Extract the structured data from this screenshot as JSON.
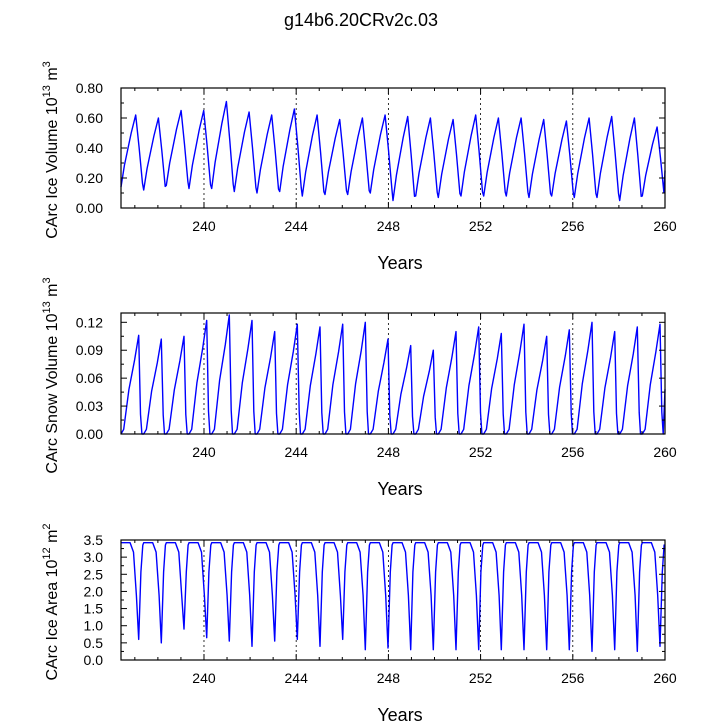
{
  "figure": {
    "title": "g14b6.20CRv2c.03"
  },
  "colors": {
    "line": "#0000ff",
    "frame": "#000000",
    "refline": "#000000"
  },
  "chart_data": [
    {
      "type": "line",
      "xlabel": "Years",
      "ylabel": "CArc Ice Volume 10",
      "ylabel_exp": "13",
      "ylabel_unit": " m",
      "ylabel_unit_exp": "3",
      "xlim": [
        236.4,
        260
      ],
      "ylim": [
        0,
        0.8
      ],
      "xticks": [
        240,
        244,
        248,
        252,
        256,
        260
      ],
      "xtick_labels": [
        "240",
        "244",
        "248",
        "252",
        "256",
        "260"
      ],
      "yticks": [
        0,
        0.2,
        0.4,
        0.6,
        0.8
      ],
      "ytick_labels": [
        "0.00",
        "0.20",
        "0.40",
        "0.60",
        "0.80"
      ],
      "grid": "dashed vertical lines at 240, 244, 248, 252, 256",
      "series": [
        {
          "peaks": [
            0.62,
            0.6,
            0.65,
            0.65,
            0.71,
            0.64,
            0.62,
            0.66,
            0.62,
            0.59,
            0.6,
            0.62,
            0.61,
            0.6,
            0.59,
            0.62,
            0.6,
            0.6,
            0.59,
            0.58,
            0.6,
            0.61,
            0.6,
            0.54
          ],
          "troughs": [
            0.14,
            0.12,
            0.15,
            0.13,
            0.13,
            0.11,
            0.1,
            0.11,
            0.08,
            0.09,
            0.09,
            0.1,
            0.05,
            0.08,
            0.07,
            0.08,
            0.08,
            0.08,
            0.07,
            0.08,
            0.07,
            0.07,
            0.05,
            0.08
          ]
        }
      ]
    },
    {
      "type": "line",
      "xlabel": "Years",
      "ylabel": "CArc Snow Volume 10",
      "ylabel_exp": "13",
      "ylabel_unit": " m",
      "ylabel_unit_exp": "3",
      "xlim": [
        236.4,
        260
      ],
      "ylim": [
        0,
        0.13
      ],
      "xticks": [
        240,
        244,
        248,
        252,
        256,
        260
      ],
      "xtick_labels": [
        "240",
        "244",
        "248",
        "252",
        "256",
        "260"
      ],
      "yticks": [
        0,
        0.03,
        0.06,
        0.09,
        0.12
      ],
      "ytick_labels": [
        "0.00",
        "0.03",
        "0.06",
        "0.09",
        "0.12"
      ],
      "grid": "dashed vertical lines at 240, 244, 248, 252, 256",
      "series": [
        {
          "peaks": [
            0.106,
            0.102,
            0.105,
            0.122,
            0.128,
            0.122,
            0.11,
            0.118,
            0.115,
            0.118,
            0.12,
            0.102,
            0.095,
            0.09,
            0.11,
            0.115,
            0.108,
            0.118,
            0.105,
            0.112,
            0.12,
            0.11,
            0.115,
            0.118
          ],
          "troughs": [
            0.0,
            0.0,
            0.0,
            0.0,
            0.0,
            0.0,
            0.0,
            0.0,
            0.0,
            0.0,
            0.0,
            0.0,
            0.0,
            0.0,
            0.0,
            0.0,
            0.0,
            0.0,
            0.0,
            0.0,
            0.0,
            0.0,
            0.0,
            0.0
          ]
        }
      ]
    },
    {
      "type": "line",
      "xlabel": "Years",
      "ylabel": "CArc Ice Area 10",
      "ylabel_exp": "12",
      "ylabel_unit": " m",
      "ylabel_unit_exp": "2",
      "xlim": [
        236.4,
        260
      ],
      "ylim": [
        0,
        3.5
      ],
      "xticks": [
        240,
        244,
        248,
        252,
        256,
        260
      ],
      "xtick_labels": [
        "240",
        "244",
        "248",
        "252",
        "256",
        "260"
      ],
      "yticks": [
        0,
        0.5,
        1.0,
        1.5,
        2.0,
        2.5,
        3.0,
        3.5
      ],
      "ytick_labels": [
        "0.0",
        "0.5",
        "1.0",
        "1.5",
        "2.0",
        "2.5",
        "3.0",
        "3.5"
      ],
      "grid": "dashed vertical lines at 240, 244, 248, 252, 256",
      "series": [
        {
          "peaks": [
            3.42,
            3.42,
            3.42,
            3.42,
            3.42,
            3.42,
            3.42,
            3.42,
            3.42,
            3.42,
            3.42,
            3.42,
            3.42,
            3.42,
            3.42,
            3.42,
            3.42,
            3.42,
            3.42,
            3.42,
            3.42,
            3.42,
            3.42,
            3.42
          ],
          "troughs": [
            0.6,
            0.5,
            0.9,
            0.65,
            0.55,
            0.4,
            0.55,
            0.6,
            0.4,
            0.6,
            0.3,
            0.35,
            0.3,
            0.3,
            0.3,
            0.3,
            0.3,
            0.3,
            0.3,
            0.3,
            0.25,
            0.3,
            0.25,
            0.4
          ]
        }
      ]
    }
  ]
}
